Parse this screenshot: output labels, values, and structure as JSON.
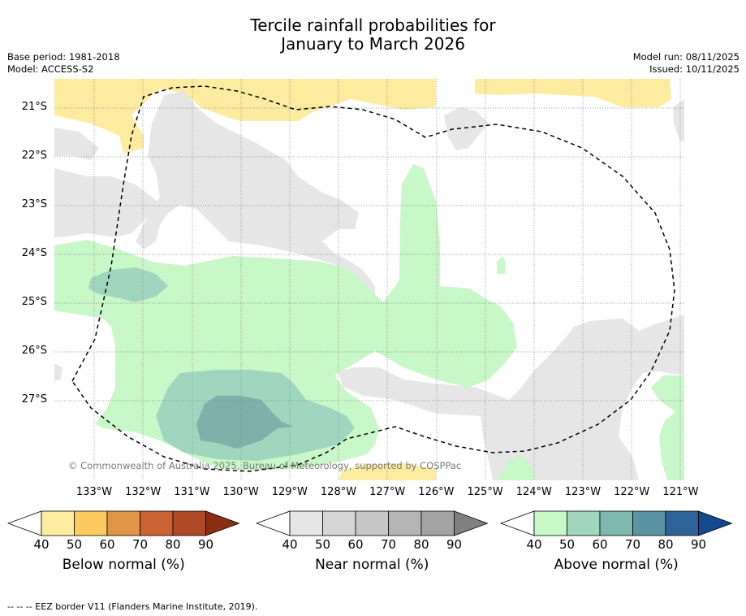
{
  "title_line1": "Tercile rainfall probabilities for",
  "title_line2": "January to March 2026",
  "base_period": "Base period: 1981-2018",
  "model": "Model: ACCESS-S2",
  "model_run": "Model run: 08/11/2025",
  "issued": "Issued: 10/11/2025",
  "copyright": "© Commonwealth of Australia 2025, Bureau of Meteorology, supported by COSPPac",
  "footer": "--  --  -- EEZ border V11 (Flanders Marine Institute, 2019).",
  "lat_labels": [
    "21°S",
    "22°S",
    "23°S",
    "24°S",
    "25°S",
    "26°S",
    "27°S"
  ],
  "lon_labels": [
    "133°W",
    "132°W",
    "131°W",
    "130°W",
    "129°W",
    "128°W",
    "127°W",
    "126°W",
    "125°W",
    "124°W",
    "123°W",
    "122°W",
    "121°W"
  ],
  "colorbars": [
    {
      "title": "Below normal (%)",
      "ticks": [
        "40",
        "50",
        "60",
        "70",
        "80",
        "90"
      ],
      "colors": [
        "#ffffff",
        "#fdeba0",
        "#fdca60",
        "#e09547",
        "#cb6232",
        "#b04a26",
        "#8c2e14"
      ]
    },
    {
      "title": "Near normal (%)",
      "ticks": [
        "40",
        "50",
        "60",
        "70",
        "80",
        "90"
      ],
      "colors": [
        "#ffffff",
        "#e6e6e6",
        "#d5d5d5",
        "#c6c6c6",
        "#b4b4b4",
        "#a3a3a3",
        "#808080"
      ]
    },
    {
      "title": "Above normal (%)",
      "ticks": [
        "40",
        "50",
        "60",
        "70",
        "80",
        "90"
      ],
      "colors": [
        "#ffffff",
        "#c8f7c8",
        "#a0d6be",
        "#7eb8ae",
        "#5a93a1",
        "#2e6398",
        "#154a8f"
      ]
    }
  ]
}
